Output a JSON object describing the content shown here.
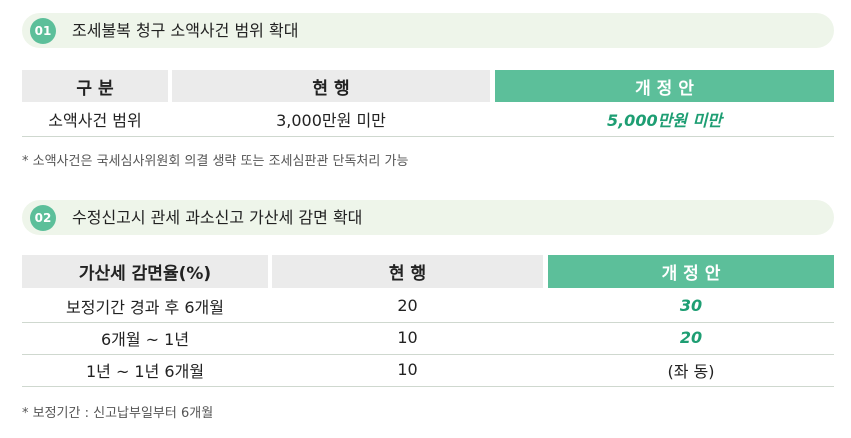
{
  "sections": [
    {
      "number": "01",
      "title": "조세불복 청구 소액사건 범위 확대",
      "table": {
        "header": [
          "구 분",
          "현 행",
          "개 정 안"
        ],
        "rows": [
          [
            "소액사건 범위",
            "3,000만원 미만",
            "5,000만원 미만"
          ]
        ]
      },
      "note": "* 소액사건은 국세심사위원회 의결 생략 또는 조세심판관 단독처리 가능"
    },
    {
      "number": "02",
      "title": "수정신고시 관세 과소신고 가산세 감면 확대",
      "table": {
        "header": [
          "가산세 감면율(%)",
          "현 행",
          "개 정 안"
        ],
        "rows": [
          [
            "보정기간 경과 후 6개월",
            "20",
            "30"
          ],
          [
            "6개월 ~ 1년",
            "10",
            "20"
          ],
          [
            "1년 ~ 1년 6개월",
            "10",
            "(좌 동)"
          ]
        ]
      },
      "note": "* 보정기간 : 신고납부일부터 6개월"
    }
  ]
}
